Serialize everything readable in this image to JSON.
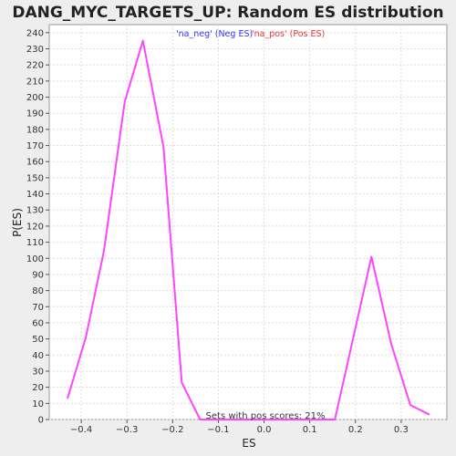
{
  "chart_data": {
    "type": "line",
    "title": "DANG_MYC_TARGETS_UP: Random ES distribution",
    "xlabel": "ES",
    "ylabel": "P(ES)",
    "xlim": [
      -0.47,
      0.4
    ],
    "ylim": [
      0,
      245
    ],
    "x_ticks": [
      -0.4,
      -0.3,
      -0.2,
      -0.1,
      0.0,
      0.1,
      0.2,
      0.3
    ],
    "x_tick_labels": [
      "−0.4",
      "−0.3",
      "−0.2",
      "−0.1",
      "0.0",
      "0.1",
      "0.2",
      "0.3"
    ],
    "y_ticks": [
      0,
      10,
      20,
      30,
      40,
      50,
      60,
      70,
      80,
      90,
      100,
      110,
      120,
      130,
      140,
      150,
      160,
      170,
      180,
      190,
      200,
      210,
      220,
      230,
      240
    ],
    "grid": true,
    "legend": {
      "position": "top-center",
      "entries": [
        {
          "label": "'na_neg' (Neg ES)",
          "color": "#3333ff"
        },
        {
          "label": "'na_pos' (Pos ES)",
          "color": "#ee3333"
        }
      ]
    },
    "annotation": "Sets with pos scores: 21%",
    "line_color": "#ff44ff",
    "series": [
      {
        "x": [
          -0.43,
          -0.39,
          -0.35,
          -0.305,
          -0.265,
          -0.22,
          -0.18,
          -0.14,
          0.155,
          0.235,
          0.278,
          0.32,
          0.362
        ],
        "values": [
          13,
          51,
          105,
          197,
          235,
          169,
          23,
          0,
          0,
          101,
          47,
          9,
          3
        ]
      }
    ]
  }
}
